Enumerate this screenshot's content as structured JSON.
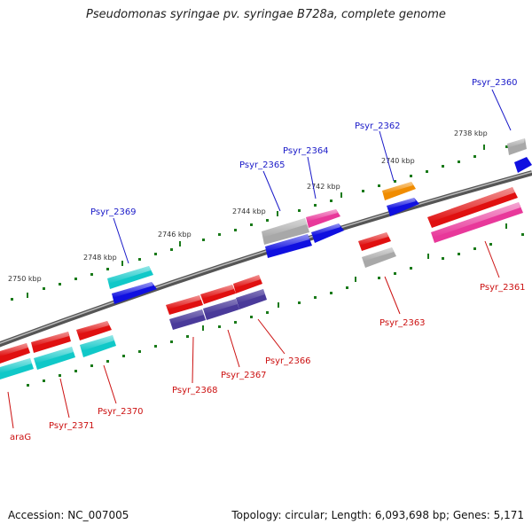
{
  "title": "Pseudomonas syringae pv. syringae B728a, complete genome",
  "footer": {
    "accession": "Accession: NC_007005",
    "summary": "Topology: circular; Length: 6,093,698 bp; Genes: 5,171"
  },
  "scale_labels": [
    "2738 kbp",
    "2740 kbp",
    "2742 kbp",
    "2744 kbp",
    "2746 kbp",
    "2748 kbp",
    "2750 kbp"
  ],
  "genes_top": [
    {
      "name": "Psyr_2360",
      "color": "#1a1ac8"
    },
    {
      "name": "Psyr_2362",
      "color": "#1a1ac8"
    },
    {
      "name": "Psyr_2364",
      "color": "#1a1ac8"
    },
    {
      "name": "Psyr_2365",
      "color": "#1a1ac8"
    },
    {
      "name": "Psyr_2369",
      "color": "#1a1ac8"
    }
  ],
  "genes_bottom": [
    {
      "name": "Psyr_2361",
      "color": "#cc1111"
    },
    {
      "name": "Psyr_2363",
      "color": "#cc1111"
    },
    {
      "name": "Psyr_2366",
      "color": "#cc1111"
    },
    {
      "name": "Psyr_2367",
      "color": "#cc1111"
    },
    {
      "name": "Psyr_2368",
      "color": "#cc1111"
    },
    {
      "name": "Psyr_2370",
      "color": "#cc1111"
    },
    {
      "name": "Psyr_2371",
      "color": "#cc1111"
    },
    {
      "name": "araG",
      "color": "#cc1111"
    }
  ],
  "colors": {
    "red": "#e01010",
    "blue": "#1010e0",
    "cyan": "#10c8c8",
    "grey": "#a8a8a8",
    "magenta": "#e8389a",
    "orange": "#f08c00",
    "purple": "#4a3a9a",
    "backbone": "#777777",
    "tick": "#1a7a1a"
  }
}
